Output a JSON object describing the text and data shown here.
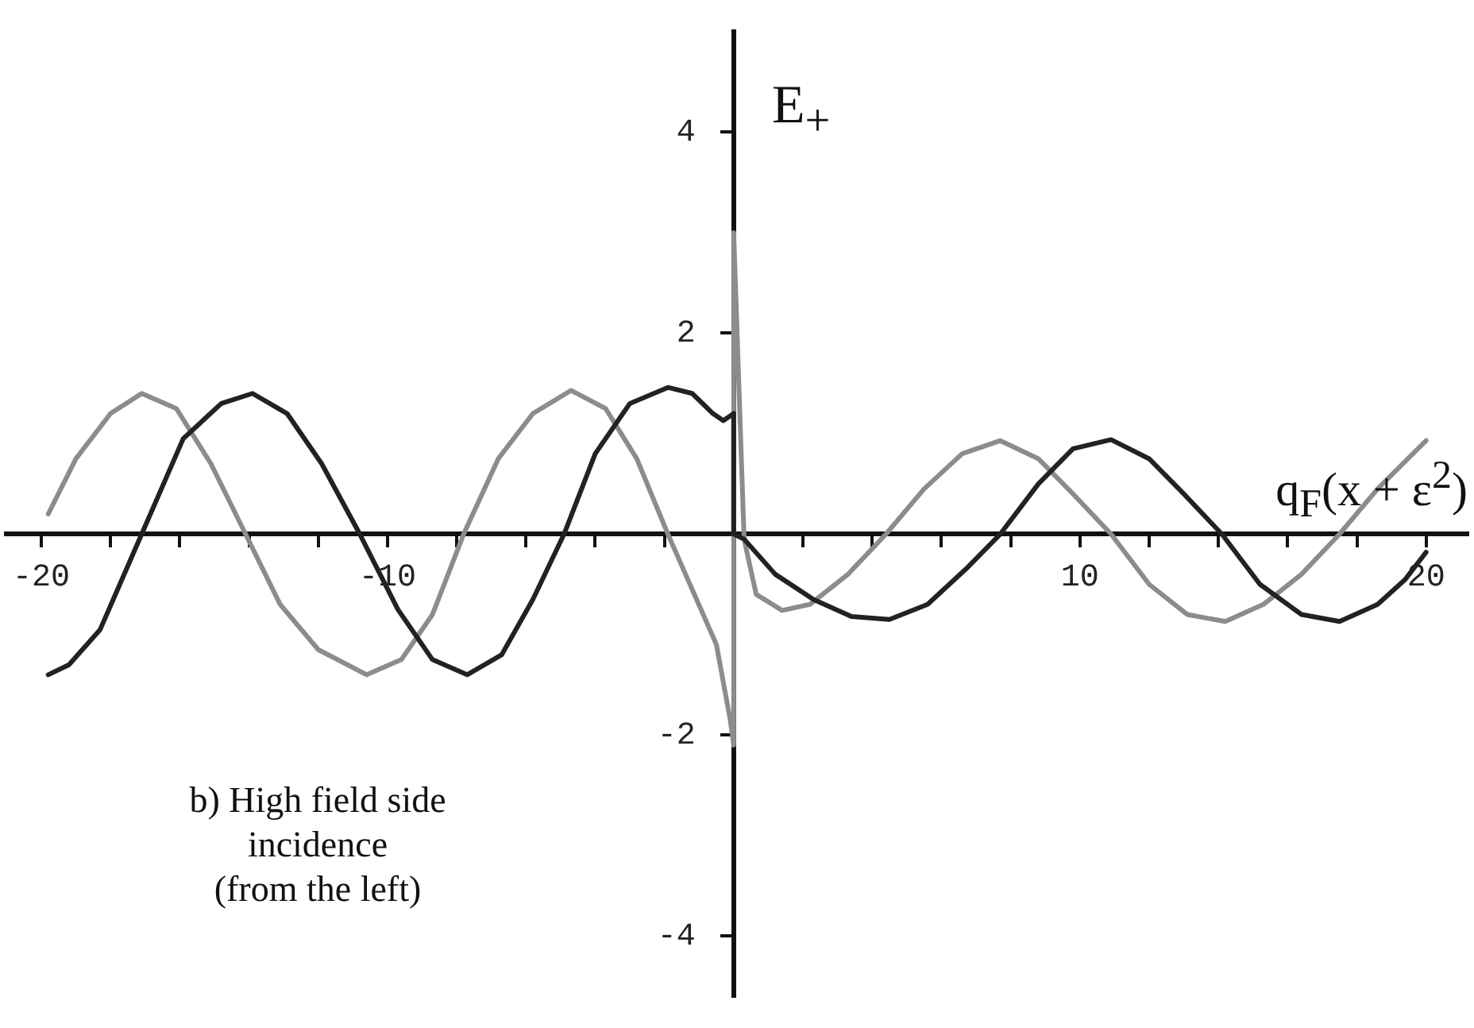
{
  "chart_data": {
    "type": "line",
    "xlabel": "q$_{F}$(x + ε$^{2}$)",
    "ylabel": "E$_{+}$",
    "annotations": [
      "b) High field side\nincidence\n(from the left)"
    ],
    "xlim": [
      -21,
      21.2
    ],
    "ylim": [
      -4.6,
      5
    ],
    "xticks": [
      {
        "value": -20,
        "label": "-20"
      },
      {
        "value": -18,
        "label": null
      },
      {
        "value": -16,
        "label": null
      },
      {
        "value": -14,
        "label": null
      },
      {
        "value": -12,
        "label": null
      },
      {
        "value": -10,
        "label": "-10"
      },
      {
        "value": -8,
        "label": null
      },
      {
        "value": -6,
        "label": null
      },
      {
        "value": -4,
        "label": null
      },
      {
        "value": -2,
        "label": null
      },
      {
        "value": 2,
        "label": null
      },
      {
        "value": 4,
        "label": null
      },
      {
        "value": 6,
        "label": null
      },
      {
        "value": 8,
        "label": null
      },
      {
        "value": 10,
        "label": "10"
      },
      {
        "value": 12,
        "label": null
      },
      {
        "value": 14,
        "label": null
      },
      {
        "value": 16,
        "label": null
      },
      {
        "value": 18,
        "label": null
      },
      {
        "value": 20,
        "label": "20"
      }
    ],
    "yticks": [
      -4,
      -2,
      2,
      4
    ],
    "grid": false,
    "legend": false,
    "marker": "none",
    "line_style": "solid",
    "series": [
      {
        "color": "#222222",
        "x": [
          -19.8,
          -19.2,
          -18.3,
          -17.1,
          -15.9,
          -14.8,
          -13.9,
          -12.9,
          -11.9,
          -10.8,
          -9.7,
          -8.7,
          -7.7,
          -6.7,
          -5.8,
          -4.9,
          -4.0,
          -3.0,
          -1.9,
          -1.2,
          -0.6,
          -0.3,
          0,
          0,
          0.3,
          1.2,
          2.3,
          3.4,
          4.5,
          5.6,
          6.7,
          7.7,
          8.8,
          9.8,
          10.9,
          12.0,
          13.0,
          14.1,
          15.2,
          16.4,
          17.5,
          18.6,
          19.4,
          20
        ],
        "values": [
          -1.4,
          -1.3,
          -0.95,
          0,
          0.95,
          1.3,
          1.4,
          1.2,
          0.7,
          0,
          -0.75,
          -1.25,
          -1.4,
          -1.2,
          -0.65,
          0,
          0.8,
          1.3,
          1.46,
          1.4,
          1.2,
          1.13,
          1.2,
          0,
          -0.05,
          -0.4,
          -0.65,
          -0.82,
          -0.85,
          -0.7,
          -0.35,
          0,
          0.5,
          0.85,
          0.94,
          0.75,
          0.4,
          0,
          -0.5,
          -0.8,
          -0.87,
          -0.7,
          -0.45,
          -0.18
        ]
      },
      {
        "color": "#8c8c8c",
        "x": [
          -19.8,
          -19.0,
          -18.0,
          -17.1,
          -16.1,
          -15.1,
          -14.1,
          -13.1,
          -12.0,
          -10.6,
          -9.6,
          -8.7,
          -7.8,
          -6.8,
          -5.8,
          -4.7,
          -3.7,
          -2.8,
          -1.9,
          -1.2,
          -0.5,
          -0.1,
          0,
          0,
          0.3,
          0.65,
          1.4,
          2.2,
          3.3,
          4.4,
          5.5,
          6.6,
          7.7,
          8.8,
          9.8,
          10.9,
          12.0,
          13.1,
          14.2,
          15.3,
          16.4,
          17.5,
          18.6,
          20
        ],
        "values": [
          0.2,
          0.75,
          1.2,
          1.4,
          1.25,
          0.7,
          0,
          -0.7,
          -1.15,
          -1.4,
          -1.25,
          -0.8,
          0,
          0.75,
          1.2,
          1.43,
          1.25,
          0.75,
          0,
          -0.55,
          -1.1,
          -1.85,
          -2.1,
          3.0,
          -0.05,
          -0.6,
          -0.76,
          -0.7,
          -0.4,
          0,
          0.45,
          0.8,
          0.93,
          0.75,
          0.4,
          0,
          -0.5,
          -0.8,
          -0.87,
          -0.7,
          -0.4,
          0,
          0.45,
          0.93
        ]
      }
    ]
  }
}
